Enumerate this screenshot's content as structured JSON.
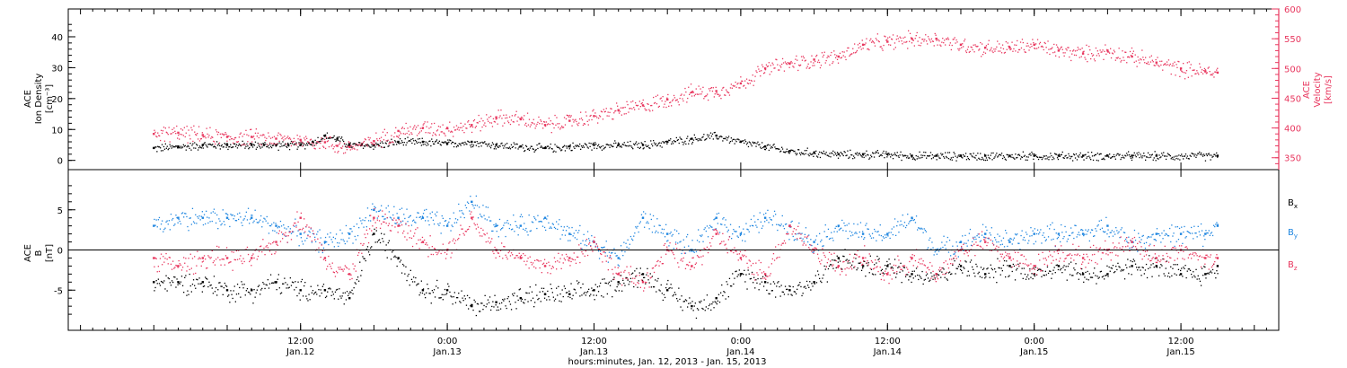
{
  "colors": {
    "black": "#000000",
    "red": "#e8365e",
    "blue": "#1f86e0"
  },
  "chart_data": [
    {
      "type": "scatter",
      "panel": "top",
      "ylabel_left": [
        "ACE",
        "Ion Density",
        "[cm⁻³]"
      ],
      "ylabel_right": [
        "ACE",
        "Velocity",
        "[km/s]"
      ],
      "ylim_left": [
        -3,
        49
      ],
      "ylim_right": [
        330,
        600
      ],
      "yticks_left": [
        0,
        10,
        20,
        30,
        40
      ],
      "yticks_left_labels": [
        "0",
        "10",
        "20",
        "30",
        "40"
      ],
      "yticks_right": [
        350,
        400,
        450,
        500,
        550,
        600
      ],
      "yticks_right_labels": [
        "350",
        "400",
        "450",
        "500",
        "550",
        "600"
      ],
      "series": [
        {
          "name": "Ion Density",
          "axis": "left",
          "color": "#000000",
          "x_hours": [
            0,
            2,
            4,
            6,
            8,
            9,
            10,
            11,
            12,
            13,
            14,
            15,
            16,
            17,
            18,
            20,
            22,
            24,
            26,
            28,
            30,
            32,
            34,
            36,
            38,
            40,
            42,
            44,
            46,
            48,
            50,
            52,
            54,
            56,
            58,
            60,
            62,
            64,
            66,
            68,
            70,
            72,
            74,
            76,
            78,
            80,
            82,
            87
          ],
          "values": [
            4,
            4.5,
            5,
            5,
            5,
            5,
            5,
            5,
            5,
            6,
            8,
            7,
            5,
            5,
            5,
            6,
            6,
            5.5,
            6,
            5,
            4.5,
            4,
            4.5,
            5,
            5,
            5,
            6,
            7,
            8,
            6,
            4.5,
            3,
            2.5,
            2,
            2,
            2,
            1.5,
            1.5,
            1.5,
            1.5,
            1.5,
            1.5,
            1.5,
            1.5,
            1.5,
            1.5,
            1.5,
            1.5
          ]
        },
        {
          "name": "Velocity",
          "axis": "right",
          "color": "#e8365e",
          "x_hours": [
            0,
            2,
            4,
            6,
            8,
            10,
            12,
            14,
            15,
            16,
            18,
            20,
            22,
            24,
            26,
            28,
            30,
            32,
            34,
            36,
            38,
            40,
            42,
            44,
            46,
            48,
            50,
            52,
            54,
            56,
            58,
            60,
            62,
            64,
            66,
            68,
            70,
            72,
            74,
            76,
            78,
            80,
            82,
            84,
            86,
            87
          ],
          "values": [
            390,
            392,
            388,
            385,
            385,
            382,
            380,
            376,
            370,
            368,
            378,
            395,
            400,
            400,
            405,
            418,
            415,
            405,
            412,
            420,
            430,
            438,
            448,
            460,
            462,
            475,
            500,
            508,
            515,
            520,
            540,
            545,
            550,
            550,
            540,
            535,
            535,
            540,
            530,
            525,
            530,
            520,
            510,
            500,
            495,
            493
          ]
        }
      ]
    },
    {
      "type": "scatter",
      "panel": "bottom",
      "ylabel_left": [
        "ACE",
        "B",
        "[nT]"
      ],
      "ylim": [
        -10,
        10
      ],
      "yticks": [
        -5,
        0,
        5
      ],
      "yticks_labels": [
        "-5",
        "0",
        "5"
      ],
      "legend": [
        {
          "label": "B",
          "sub": "x",
          "color": "#000000"
        },
        {
          "label": "B",
          "sub": "y",
          "color": "#1f86e0"
        },
        {
          "label": "B",
          "sub": "z",
          "color": "#e8365e"
        }
      ],
      "series": [
        {
          "name": "Bx",
          "color": "#000000",
          "x_hours": [
            0,
            2,
            4,
            6,
            8,
            10,
            12,
            14,
            16,
            18,
            20,
            22,
            24,
            26,
            28,
            30,
            32,
            34,
            36,
            38,
            40,
            42,
            44,
            46,
            48,
            50,
            52,
            54,
            56,
            58,
            60,
            62,
            64,
            66,
            68,
            70,
            72,
            74,
            76,
            78,
            80,
            82,
            84,
            86,
            87
          ],
          "values": [
            -4,
            -4,
            -4,
            -5,
            -5,
            -4,
            -5,
            -5,
            -6,
            2,
            -1,
            -5,
            -5,
            -7,
            -6.5,
            -6,
            -5.5,
            -5.5,
            -5,
            -4,
            -3,
            -5,
            -7,
            -6,
            -3,
            -4,
            -5,
            -4,
            -1,
            -2,
            -2,
            -3,
            -3,
            -2,
            -3,
            -2,
            -3,
            -2,
            -3,
            -3,
            -2,
            -2,
            -3,
            -3,
            -2
          ]
        },
        {
          "name": "By",
          "color": "#1f86e0",
          "x_hours": [
            0,
            2,
            4,
            6,
            8,
            10,
            12,
            14,
            16,
            18,
            20,
            22,
            24,
            26,
            28,
            30,
            32,
            34,
            36,
            38,
            40,
            42,
            44,
            46,
            48,
            50,
            52,
            54,
            56,
            58,
            60,
            62,
            64,
            66,
            68,
            70,
            72,
            74,
            76,
            78,
            80,
            82,
            84,
            86,
            87
          ],
          "values": [
            3,
            4,
            4,
            4,
            4,
            3,
            2,
            1,
            2,
            5,
            4,
            4,
            3,
            6,
            3,
            3,
            4,
            2,
            1,
            -1,
            4,
            2,
            0,
            4,
            2,
            4,
            3,
            1,
            3,
            2,
            2,
            4,
            0,
            1,
            2,
            1,
            2,
            2,
            2,
            3,
            1,
            2,
            2,
            2,
            3
          ]
        },
        {
          "name": "Bz",
          "color": "#e8365e",
          "x_hours": [
            0,
            2,
            4,
            6,
            8,
            10,
            12,
            14,
            16,
            18,
            20,
            22,
            24,
            26,
            28,
            30,
            32,
            34,
            36,
            38,
            40,
            42,
            44,
            46,
            48,
            50,
            52,
            54,
            56,
            58,
            60,
            62,
            64,
            66,
            68,
            70,
            72,
            74,
            76,
            78,
            80,
            82,
            84,
            86,
            87
          ],
          "values": [
            -1,
            -2,
            -1,
            -1,
            -1,
            1,
            4,
            -1,
            -3,
            4,
            3,
            1,
            0,
            4,
            0,
            -1,
            -2,
            -1,
            1,
            -3,
            -4,
            0,
            -2,
            2,
            -1,
            -3,
            3,
            0,
            -2,
            -1,
            -3,
            -1,
            -3,
            0,
            1,
            -1,
            -2,
            0,
            -1,
            0,
            1,
            -1,
            0,
            -1,
            -1
          ]
        }
      ]
    }
  ],
  "x_axis": {
    "range_hours": [
      -7,
      92
    ],
    "ticks_hours": [
      12,
      24,
      36,
      48,
      60,
      72,
      84
    ],
    "tick_labels_time": [
      "12:00",
      "0:00",
      "12:00",
      "0:00",
      "12:00",
      "0:00",
      "12:00"
    ],
    "tick_labels_date": [
      "Jan.12",
      "Jan.13",
      "Jan.13",
      "Jan.14",
      "Jan.14",
      "Jan.15",
      "Jan.15"
    ],
    "title": "hours:minutes, Jan. 12, 2013 - Jan. 15, 2013"
  }
}
